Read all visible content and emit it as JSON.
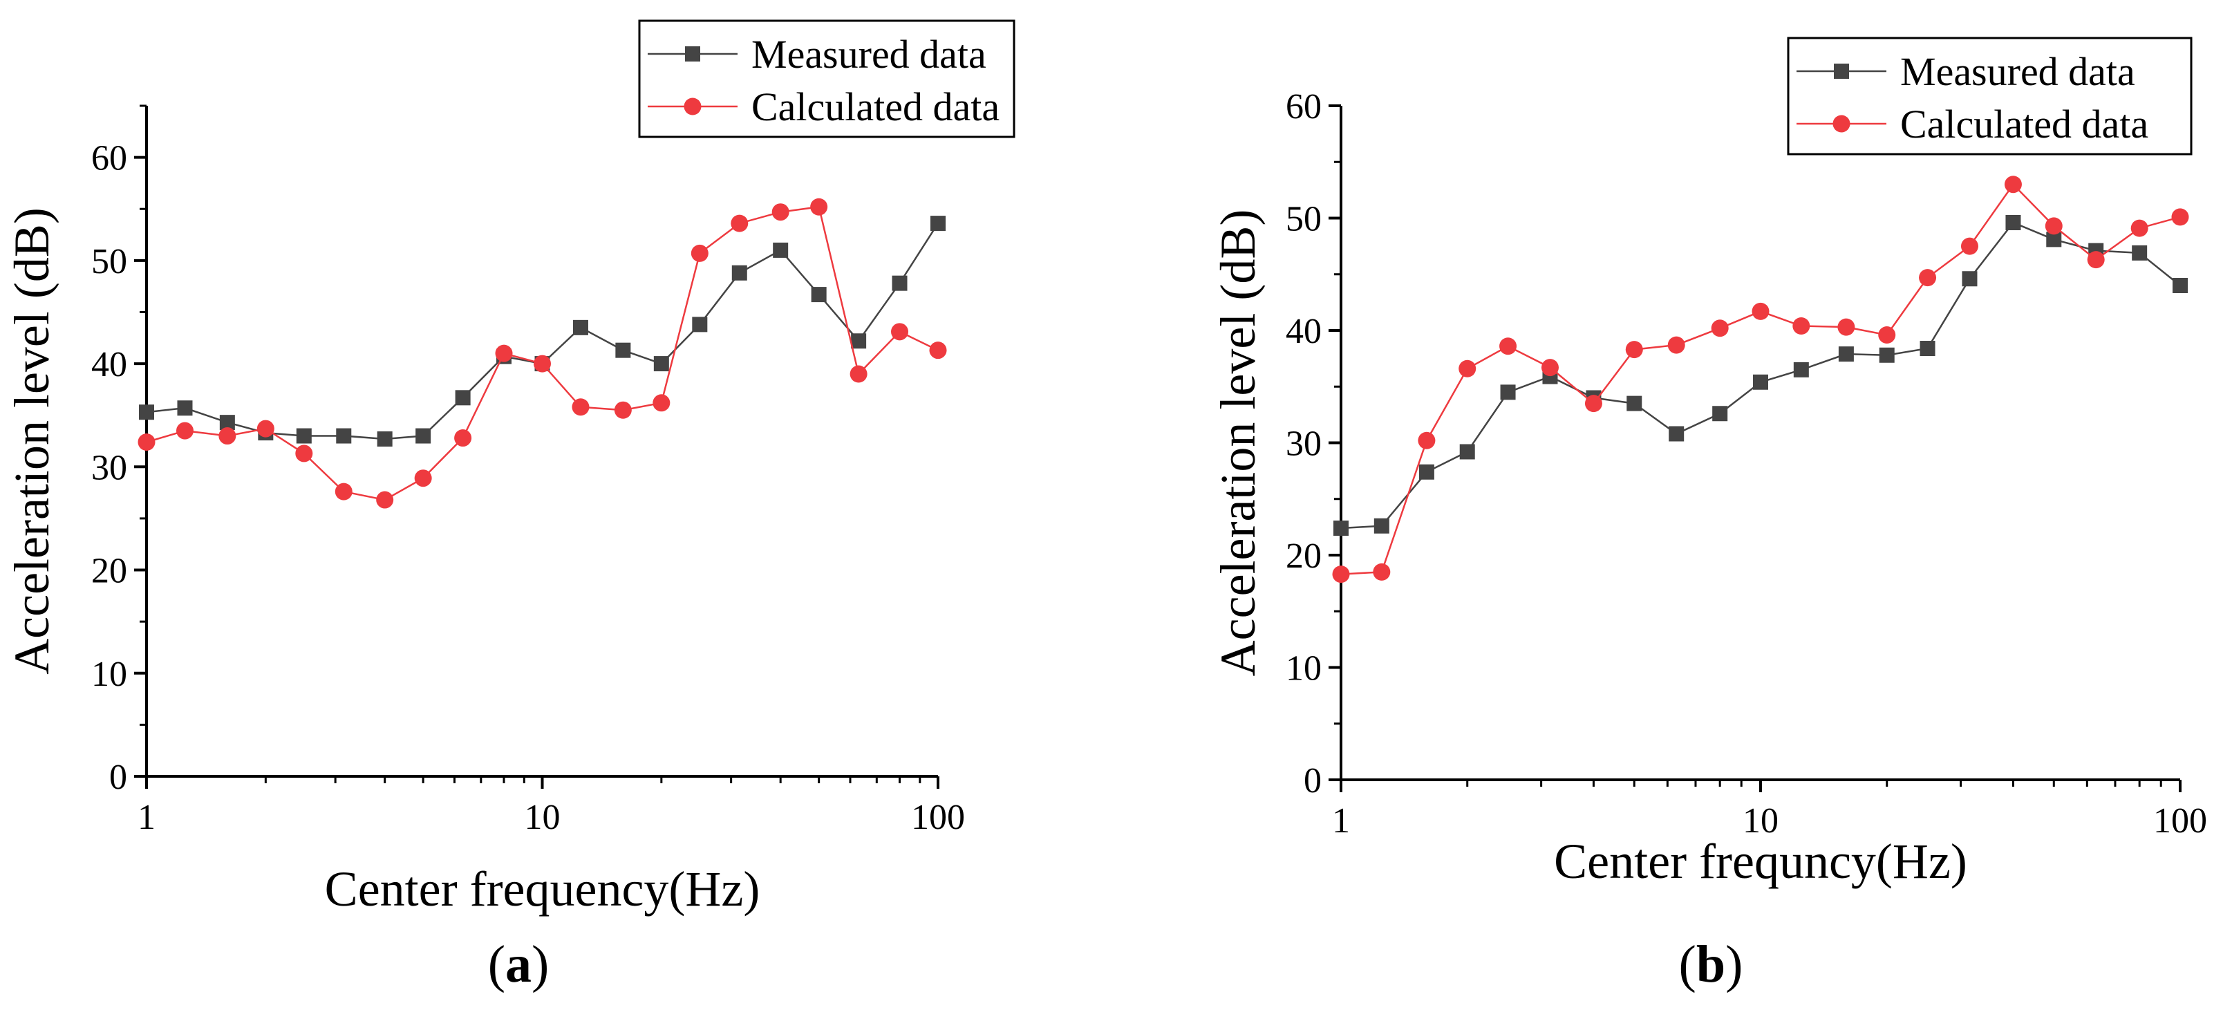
{
  "chart_data": [
    {
      "type": "line",
      "panel_label": "(a)",
      "xscale": "log",
      "xlabel": "Center frequency(Hz)",
      "ylabel": "Acceleration level (dB)",
      "xlim": [
        1,
        100
      ],
      "ylim": [
        0,
        65
      ],
      "xticks": [
        1,
        10,
        100
      ],
      "xtick_labels": [
        "1",
        "10",
        "100"
      ],
      "yticks": [
        0,
        10,
        20,
        30,
        40,
        50,
        60
      ],
      "ytick_labels": [
        "0",
        "10",
        "20",
        "30",
        "40",
        "50",
        "60"
      ],
      "grid": false,
      "legend_position": "top-right",
      "x": [
        1,
        1.25,
        1.6,
        2,
        2.5,
        3.15,
        4,
        5,
        6.3,
        8,
        10,
        12.5,
        16,
        20,
        25,
        31.5,
        40,
        50,
        63,
        80,
        100
      ],
      "series": [
        {
          "name": "Measured data",
          "color": "#444444",
          "marker": "square",
          "values": [
            35.3,
            35.7,
            34.3,
            33.3,
            33.0,
            33.0,
            32.7,
            33.0,
            36.7,
            40.7,
            40.0,
            43.5,
            41.3,
            40.0,
            43.8,
            48.8,
            51.0,
            46.7,
            42.2,
            47.8,
            53.6
          ]
        },
        {
          "name": "Calculated data",
          "color": "#ee3a3f",
          "marker": "circle",
          "values": [
            32.4,
            33.5,
            33.0,
            33.7,
            31.3,
            27.6,
            26.8,
            28.9,
            32.8,
            41.0,
            40.0,
            35.8,
            35.5,
            36.2,
            50.7,
            53.6,
            54.7,
            55.2,
            39.0,
            43.1,
            41.3
          ]
        }
      ]
    },
    {
      "type": "line",
      "panel_label": "(b)",
      "xscale": "log",
      "xlabel": "Center frequncy(Hz)",
      "ylabel": "Acceleration level  (dB)",
      "xlim": [
        1,
        100
      ],
      "ylim": [
        0,
        60
      ],
      "xticks": [
        1,
        10,
        100
      ],
      "xtick_labels": [
        "1",
        "10",
        "100"
      ],
      "yticks": [
        0,
        10,
        20,
        30,
        40,
        50,
        60
      ],
      "ytick_labels": [
        "0",
        "10",
        "20",
        "30",
        "40",
        "50",
        "60"
      ],
      "grid": false,
      "legend_position": "top-right",
      "x": [
        1,
        1.25,
        1.6,
        2,
        2.5,
        3.15,
        4,
        5,
        6.3,
        8,
        10,
        12.5,
        16,
        20,
        25,
        31.5,
        40,
        50,
        63,
        80,
        100
      ],
      "series": [
        {
          "name": "Measured data",
          "color": "#444444",
          "marker": "square",
          "values": [
            22.4,
            22.6,
            27.4,
            29.2,
            34.5,
            35.9,
            34.0,
            33.5,
            30.8,
            32.6,
            35.4,
            36.5,
            37.9,
            37.8,
            38.4,
            44.6,
            49.6,
            48.1,
            47.1,
            46.9,
            44.0
          ]
        },
        {
          "name": "Calculated data",
          "color": "#ee3a3f",
          "marker": "circle",
          "values": [
            18.3,
            18.5,
            30.2,
            36.6,
            38.6,
            36.7,
            33.5,
            38.3,
            38.7,
            40.2,
            41.7,
            40.4,
            40.3,
            39.6,
            44.7,
            47.5,
            53.0,
            49.3,
            46.3,
            49.1,
            50.1
          ]
        }
      ]
    }
  ]
}
